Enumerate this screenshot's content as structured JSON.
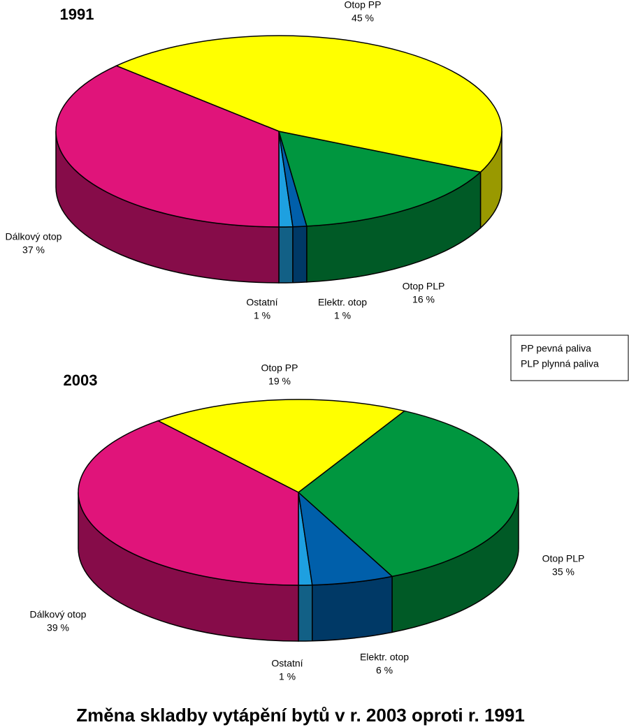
{
  "title": "Změna skladby vytápění bytů v r. 2003 oproti r. 1991",
  "note": [
    "PP pevná paliva",
    "PLP plynná paliva"
  ],
  "chart_data": [
    {
      "type": "pie",
      "title": "1991",
      "categories": [
        "Ostatní",
        "Elektr. otop",
        "Otop PLP",
        "Otop PP",
        "Dálkový otop"
      ],
      "values": [
        1,
        1,
        16,
        45,
        37
      ],
      "value_labels": [
        "1 %",
        "1 %",
        "16 %",
        "45 %",
        "37 %"
      ],
      "colors": [
        "#1ea0e0",
        "#005faa",
        "#00963f",
        "#ffff00",
        "#e0147a"
      ]
    },
    {
      "type": "pie",
      "title": "2003",
      "categories": [
        "Ostatní",
        "Elektr. otop",
        "Otop PLP",
        "Otop PP",
        "Dálkový otop"
      ],
      "values": [
        1,
        6,
        35,
        19,
        39
      ],
      "value_labels": [
        "1 %",
        "6 %",
        "35 %",
        "19 %",
        "39 %"
      ],
      "colors": [
        "#1ea0e0",
        "#005faa",
        "#00963f",
        "#ffff00",
        "#e0147a"
      ]
    }
  ]
}
